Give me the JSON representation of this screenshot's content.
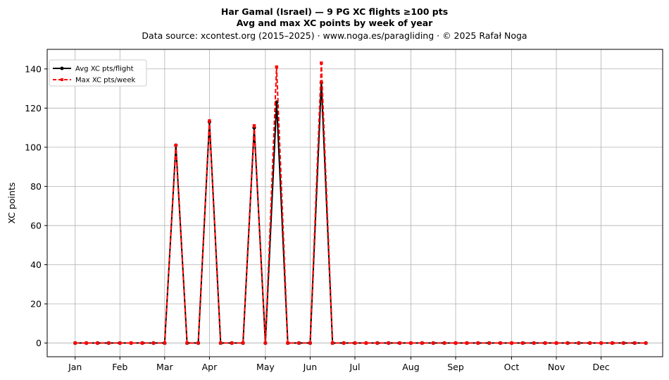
{
  "chart_data": {
    "type": "line",
    "title": "Har Gamal (Israel)  —  9 PG XC flights ≥100 pts",
    "subtitle": "Avg and max XC points by week of year",
    "source_line": "Data source: xcontest.org (2015–2025)  ·  www.noga.es/paragliding  ·  © 2025 Rafał Noga",
    "xlabel": "",
    "ylabel": "XC points",
    "xlim": [
      -1.5,
      53.5
    ],
    "ylim": [
      -7,
      150
    ],
    "x": [
      1,
      2,
      3,
      4,
      5,
      6,
      7,
      8,
      9,
      10,
      11,
      12,
      13,
      14,
      15,
      16,
      17,
      18,
      19,
      20,
      21,
      22,
      23,
      24,
      25,
      26,
      27,
      28,
      29,
      30,
      31,
      32,
      33,
      34,
      35,
      36,
      37,
      38,
      39,
      40,
      41,
      42,
      43,
      44,
      45,
      46,
      47,
      48,
      49,
      50,
      51,
      52
    ],
    "x_ticks": [
      {
        "label": "Jan",
        "x": 1
      },
      {
        "label": "Feb",
        "x": 5
      },
      {
        "label": "Mar",
        "x": 9
      },
      {
        "label": "Apr",
        "x": 13
      },
      {
        "label": "May",
        "x": 18
      },
      {
        "label": "Jun",
        "x": 22
      },
      {
        "label": "Jul",
        "x": 26
      },
      {
        "label": "Aug",
        "x": 31
      },
      {
        "label": "Sep",
        "x": 35
      },
      {
        "label": "Oct",
        "x": 40
      },
      {
        "label": "Nov",
        "x": 44
      },
      {
        "label": "Dec",
        "x": 48
      }
    ],
    "y_ticks": [
      0,
      20,
      40,
      60,
      80,
      100,
      120,
      140
    ],
    "grid": true,
    "legend_position": "top-left",
    "series": [
      {
        "name": "Avg XC pts/flight",
        "color": "#000000",
        "style": "solid",
        "marker": "circle",
        "values": [
          0,
          0,
          0,
          0,
          0,
          0,
          0,
          0,
          0,
          101,
          0,
          0,
          113,
          0,
          0,
          0,
          110,
          0,
          123,
          0,
          0,
          0,
          133,
          0,
          0,
          0,
          0,
          0,
          0,
          0,
          0,
          0,
          0,
          0,
          0,
          0,
          0,
          0,
          0,
          0,
          0,
          0,
          0,
          0,
          0,
          0,
          0,
          0,
          0,
          0,
          0,
          0
        ]
      },
      {
        "name": "Max XC pts/week",
        "color": "#ff0000",
        "style": "dashed",
        "marker": "square",
        "values": [
          0,
          0,
          0,
          0,
          0,
          0,
          0,
          0,
          0,
          101,
          0,
          0,
          113.5,
          0,
          0,
          0,
          111,
          0,
          141,
          0,
          0,
          0,
          143,
          0,
          0,
          0,
          0,
          0,
          0,
          0,
          0,
          0,
          0,
          0,
          0,
          0,
          0,
          0,
          0,
          0,
          0,
          0,
          0,
          0,
          0,
          0,
          0,
          0,
          0,
          0,
          0,
          0
        ]
      }
    ]
  }
}
